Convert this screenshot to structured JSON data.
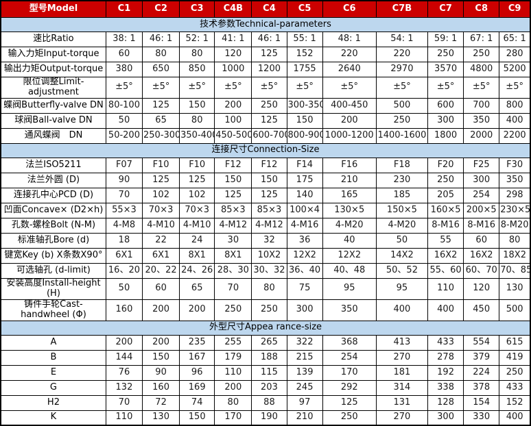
{
  "colors": {
    "header_bg": "#cc0000",
    "header_text": "#ffffff",
    "section_bg": "#bdd7ee",
    "border": "#000000",
    "text": "#1a1a1a"
  },
  "table": {
    "header": {
      "label_col": "型号Model",
      "columns": [
        "C1",
        "C2",
        "C3",
        "C4B",
        "C4",
        "C5",
        "C6",
        "C7B",
        "C7",
        "C8",
        "C9"
      ]
    },
    "sections": [
      {
        "title": "技术参数Technical-parameters",
        "rows": [
          {
            "label": "速比Ratio",
            "values": [
              "38: 1",
              "46: 1",
              "52: 1",
              "41: 1",
              "46: 1",
              "55: 1",
              "48: 1",
              "54: 1",
              "59: 1",
              "67: 1",
              "65: 1"
            ]
          },
          {
            "label": "输入力矩Input-torque",
            "values": [
              "60",
              "80",
              "80",
              "120",
              "125",
              "152",
              "220",
              "220",
              "250",
              "250",
              "280"
            ]
          },
          {
            "label": "输出力矩Output-torque",
            "values": [
              "380",
              "650",
              "850",
              "1000",
              "1200",
              "1755",
              "2640",
              "2970",
              "3570",
              "4800",
              "5200"
            ]
          },
          {
            "label": "限位调整Limit-adjustment",
            "values": [
              "±5°",
              "±5°",
              "±5°",
              "±5°",
              "±5°",
              "±5°",
              "±5°",
              "±5°",
              "±5°",
              "±5°",
              "±5°"
            ]
          },
          {
            "label": "蝶阀Butterfly-valve DN",
            "values": [
              "80-100",
              "125",
              "150",
              "200",
              "250",
              "300-350",
              "400-450",
              "500",
              "600",
              "700",
              "800"
            ]
          },
          {
            "label": "球阀Ball-valve DN",
            "values": [
              "50",
              "65",
              "80",
              "100",
              "125",
              "150",
              "200",
              "250",
              "300",
              "350",
              "400"
            ]
          },
          {
            "label": "通风蝶阀　DN",
            "values": [
              "50-200",
              "250-300",
              "350-400",
              "450-500",
              "600-700",
              "800-900",
              "1000-1200",
              "1400-1600",
              "1800",
              "2000",
              "2200"
            ]
          }
        ]
      },
      {
        "title": "连接尺寸Connection-Size",
        "rows": [
          {
            "label": "法兰ISO5211",
            "values": [
              "F07",
              "F10",
              "F10",
              "F12",
              "F12",
              "F14",
              "F16",
              "F18",
              "F20",
              "F25",
              "F30"
            ]
          },
          {
            "label": "法兰外圆 (D)",
            "values": [
              "90",
              "125",
              "125",
              "150",
              "150",
              "175",
              "210",
              "230",
              "250",
              "300",
              "350"
            ]
          },
          {
            "label": "连接孔中心PCD (D)",
            "values": [
              "70",
              "102",
              "102",
              "125",
              "125",
              "140",
              "165",
              "185",
              "205",
              "254",
              "298"
            ]
          },
          {
            "label": "凹面Concave× (D2×h)",
            "values": [
              "55×3",
              "70×3",
              "70×3",
              "85×3",
              "85×3",
              "100×4",
              "130×5",
              "150×5",
              "160×5",
              "200×5",
              "230×5"
            ]
          },
          {
            "label": "孔数-螺栓Bolt (N-M)",
            "values": [
              "4-M8",
              "4-M10",
              "4-M10",
              "4-M12",
              "4-M12",
              "4-M16",
              "4-M20",
              "4-M20",
              "8-M16",
              "8-M16",
              "8-M20"
            ]
          },
          {
            "label": "标准轴孔Bore (d)",
            "values": [
              "18",
              "22",
              "24",
              "30",
              "32",
              "36",
              "40",
              "50",
              "55",
              "60",
              "80"
            ]
          },
          {
            "label": "键宽Key (b) X条数X90°",
            "values": [
              "6X1",
              "6X1",
              "8X1",
              "8X1",
              "10X2",
              "12X2",
              "12X2",
              "14X2",
              "16X2",
              "16X2",
              "18X2"
            ]
          },
          {
            "label": "可选轴孔 (d-limit)",
            "values": [
              "16、20",
              "20、22",
              "24、26",
              "28、30",
              "30、32",
              "36、40",
              "40、48",
              "50、52",
              "55、60",
              "60、70",
              "70、85"
            ]
          },
          {
            "label": "安装高度Install-height (H)",
            "values": [
              "50",
              "60",
              "65",
              "70",
              "80",
              "75",
              "95",
              "95",
              "110",
              "120",
              "130"
            ]
          },
          {
            "label": "铸件手轮Cast-handwheel (Φ)",
            "values": [
              "160",
              "200",
              "200",
              "250",
              "250",
              "300",
              "350",
              "400",
              "400",
              "450",
              "500"
            ]
          }
        ]
      },
      {
        "title": "外型尺寸Appea rance-size",
        "rows": [
          {
            "label": "A",
            "values": [
              "200",
              "200",
              "235",
              "255",
              "265",
              "322",
              "368",
              "413",
              "433",
              "554",
              "615"
            ]
          },
          {
            "label": "B",
            "values": [
              "144",
              "150",
              "167",
              "179",
              "188",
              "215",
              "254",
              "270",
              "278",
              "379",
              "419"
            ]
          },
          {
            "label": "E",
            "values": [
              "76",
              "90",
              "96",
              "110",
              "115",
              "139",
              "170",
              "181",
              "192",
              "224",
              "250"
            ]
          },
          {
            "label": "G",
            "values": [
              "132",
              "160",
              "169",
              "200",
              "203",
              "245",
              "292",
              "314",
              "338",
              "378",
              "433"
            ]
          },
          {
            "label": "H2",
            "values": [
              "70",
              "72",
              "74",
              "80",
              "88",
              "97",
              "125",
              "131",
              "128",
              "154",
              "152"
            ]
          },
          {
            "label": "K",
            "values": [
              "110",
              "130",
              "150",
              "170",
              "190",
              "210",
              "250",
              "270",
              "300",
              "330",
              "400"
            ]
          }
        ]
      }
    ]
  }
}
